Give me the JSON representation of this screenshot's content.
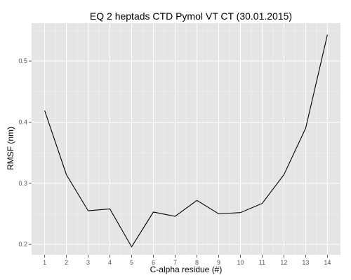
{
  "chart_data": {
    "type": "line",
    "title": "EQ 2 heptads CTD Pymol VT CT (30.01.2015)",
    "xlabel": "C-alpha residue (#)",
    "ylabel": "RMSF (nm)",
    "x": [
      1,
      2,
      3,
      4,
      5,
      6,
      7,
      8,
      9,
      10,
      11,
      12,
      13,
      14
    ],
    "series": [
      {
        "values": [
          0.419,
          0.314,
          0.255,
          0.258,
          0.196,
          0.253,
          0.246,
          0.272,
          0.25,
          0.252,
          0.267,
          0.314,
          0.39,
          0.543
        ]
      }
    ],
    "xlim": [
      0.4,
      14.6
    ],
    "ylim": [
      0.183,
      0.562
    ],
    "xticks": [
      1,
      2,
      3,
      4,
      5,
      6,
      7,
      8,
      9,
      10,
      11,
      12,
      13,
      14
    ],
    "yticks": [
      0.2,
      0.3,
      0.4,
      0.5
    ],
    "grid": true,
    "line_color": "#000000",
    "panel_color": "#e5e5e5",
    "grid_color": "#ffffff"
  }
}
